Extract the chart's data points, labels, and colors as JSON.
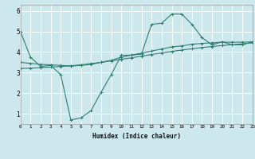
{
  "xlabel": "Humidex (Indice chaleur)",
  "bg_color": "#cde8ec",
  "grid_color": "#ffffff",
  "line_color": "#2e7d72",
  "xmin": 0,
  "xmax": 23,
  "ymin": 0.5,
  "ymax": 6.3,
  "yticks": [
    1,
    2,
    3,
    4,
    5,
    6
  ],
  "xticks": [
    0,
    1,
    2,
    3,
    4,
    5,
    6,
    7,
    8,
    9,
    10,
    11,
    12,
    13,
    14,
    15,
    16,
    17,
    18,
    19,
    20,
    21,
    22,
    23
  ],
  "line1_x": [
    0,
    1,
    2,
    3,
    4,
    5,
    6,
    7,
    8,
    9,
    10,
    11,
    12,
    13,
    14,
    15,
    16,
    17,
    18,
    19,
    20,
    21,
    22,
    23
  ],
  "line1_y": [
    5.0,
    3.75,
    3.3,
    3.35,
    2.9,
    0.7,
    0.8,
    1.15,
    2.05,
    2.9,
    3.85,
    3.85,
    3.9,
    5.35,
    5.4,
    5.85,
    5.85,
    5.35,
    4.7,
    4.35,
    4.5,
    4.35,
    4.35,
    4.5
  ],
  "line2_x": [
    0,
    1,
    2,
    3,
    4,
    5,
    6,
    7,
    8,
    9,
    10,
    11,
    12,
    13,
    14,
    15,
    16,
    17,
    18,
    19,
    20,
    21,
    22,
    23
  ],
  "line2_y": [
    3.5,
    3.45,
    3.4,
    3.38,
    3.35,
    3.32,
    3.35,
    3.4,
    3.5,
    3.6,
    3.75,
    3.85,
    3.95,
    4.05,
    4.15,
    4.25,
    4.3,
    4.38,
    4.42,
    4.45,
    4.48,
    4.48,
    4.48,
    4.5
  ],
  "line3_x": [
    0,
    1,
    2,
    3,
    4,
    5,
    6,
    7,
    8,
    9,
    10,
    11,
    12,
    13,
    14,
    15,
    16,
    17,
    18,
    19,
    20,
    21,
    22,
    23
  ],
  "line3_y": [
    3.2,
    3.22,
    3.24,
    3.27,
    3.3,
    3.33,
    3.38,
    3.44,
    3.5,
    3.57,
    3.65,
    3.72,
    3.8,
    3.88,
    3.96,
    4.03,
    4.1,
    4.16,
    4.22,
    4.27,
    4.32,
    4.36,
    4.4,
    4.45
  ]
}
